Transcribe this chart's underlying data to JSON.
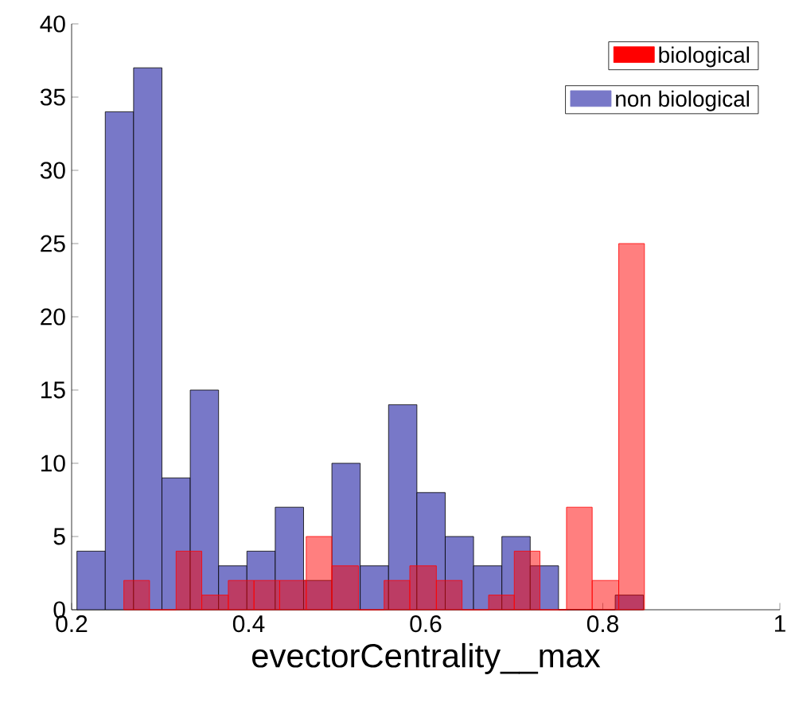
{
  "chart_data": [
    {
      "type": "histogram",
      "xlabel": "evectorCentrality__max",
      "xlim": [
        0.2,
        1
      ],
      "xticks": [
        0.2,
        0.4,
        0.6,
        0.8,
        1
      ],
      "ylim": [
        0,
        40
      ],
      "yticks": [
        0,
        5,
        10,
        15,
        20,
        25,
        30,
        35,
        40
      ],
      "legend": "top right",
      "grid": false,
      "bins": [
        0.206,
        0.238,
        0.27,
        0.302,
        0.334,
        0.366,
        0.398,
        0.43,
        0.462,
        0.494,
        0.526,
        0.558,
        0.59,
        0.622,
        0.654,
        0.686,
        0.718,
        0.75,
        0.782,
        0.814,
        0.846
      ],
      "series": [
        {
          "name": "non biological",
          "color": "#7878c8",
          "values": [
            4,
            34,
            37,
            9,
            15,
            3,
            4,
            7,
            2,
            10,
            3,
            14,
            8,
            5,
            3,
            5,
            3,
            0,
            0,
            1
          ]
        }
      ]
    },
    {
      "type": "histogram",
      "xlim": [
        0.2,
        1
      ],
      "ylim": [
        0,
        40
      ],
      "tick_labels": false,
      "legend": "top right",
      "grid": false,
      "bins": [
        0.259,
        0.288,
        0.318,
        0.347,
        0.377,
        0.406,
        0.435,
        0.465,
        0.494,
        0.524,
        0.553,
        0.582,
        0.612,
        0.641,
        0.671,
        0.7,
        0.729,
        0.759,
        0.788,
        0.818,
        0.847
      ],
      "series": [
        {
          "name": "biological",
          "color": "#ff0000",
          "values": [
            2,
            0,
            4,
            1,
            2,
            2,
            2,
            5,
            3,
            0,
            2,
            3,
            2,
            0,
            1,
            4,
            0,
            7,
            2,
            25
          ]
        }
      ]
    }
  ]
}
